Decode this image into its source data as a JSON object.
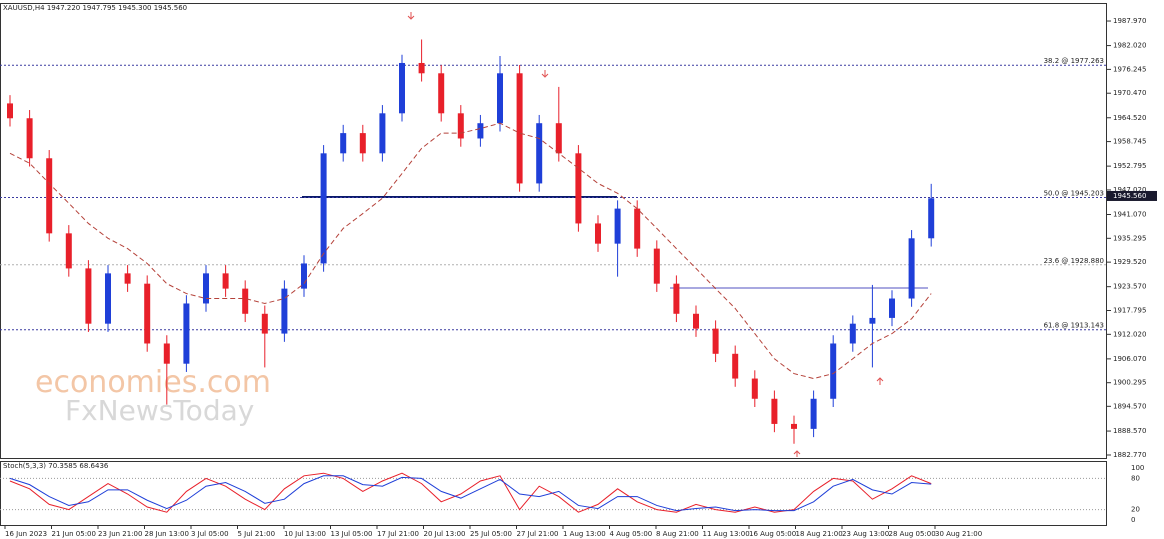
{
  "chart_data": {
    "type": "candlestick",
    "title": "XAUUSD,H4  1947.220 1947.795 1945.300 1945.560",
    "categories": [
      "16 Jun 2023",
      "21 Jun 05:00",
      "23 Jun 21:00",
      "28 Jun 13:00",
      "3 Jul 05:00",
      "5 Jul 21:00",
      "10 Jul 13:00",
      "13 Jul 05:00",
      "17 Jul 21:00",
      "20 Jul 13:00",
      "25 Jul 05:00",
      "27 Jul 21:00",
      "1 Aug 13:00",
      "4 Aug 05:00",
      "8 Aug 21:00",
      "11 Aug 13:00",
      "16 Aug 05:00",
      "18 Aug 21:00",
      "23 Aug 13:00",
      "28 Aug 05:00",
      "30 Aug 21:00"
    ],
    "open": [
      1968.0,
      1964.4,
      1954.7,
      1936.5,
      1928.0,
      1914.6,
      1926.8,
      1924.3,
      1909.8,
      1904.9,
      1919.5,
      1926.8,
      1923.1,
      1917.0,
      1912.2,
      1923.1,
      1929.2,
      1955.9,
      1960.8,
      1955.9,
      1965.6,
      1977.8,
      1975.3,
      1965.6,
      1959.5,
      1963.2,
      1975.3,
      1948.6,
      1963.2,
      1955.9,
      1938.9,
      1934.0,
      1942.5,
      1932.8,
      1924.3,
      1917.0,
      1913.4,
      1907.3,
      1901.3,
      1896.4,
      1890.3,
      1889.1,
      1896.4,
      1909.8,
      1914.6,
      1916.0,
      1920.7,
      1935.3
    ],
    "high": [
      1970.0,
      1966.4,
      1956.7,
      1938.5,
      1930.0,
      1928.8,
      1928.8,
      1926.3,
      1911.8,
      1921.5,
      1928.8,
      1928.8,
      1925.1,
      1919.0,
      1925.1,
      1931.2,
      1957.9,
      1962.8,
      1962.8,
      1967.6,
      1979.8,
      1983.5,
      1977.3,
      1967.6,
      1965.2,
      1979.5,
      1977.3,
      1965.2,
      1972.0,
      1957.9,
      1940.9,
      1944.5,
      1944.5,
      1934.8,
      1926.3,
      1919.0,
      1915.4,
      1909.3,
      1903.3,
      1898.4,
      1892.3,
      1898.4,
      1911.8,
      1916.6,
      1924.0,
      1922.7,
      1937.3,
      1948.5
    ],
    "low": [
      1962.4,
      1952.7,
      1934.5,
      1926.0,
      1912.6,
      1912.6,
      1922.3,
      1907.8,
      1895.0,
      1902.9,
      1917.5,
      1921.1,
      1915.0,
      1904.0,
      1910.2,
      1921.1,
      1927.2,
      1953.9,
      1953.9,
      1953.9,
      1963.6,
      1973.3,
      1963.6,
      1957.5,
      1957.5,
      1961.2,
      1946.6,
      1946.6,
      1953.9,
      1936.9,
      1932.0,
      1926.0,
      1930.8,
      1922.3,
      1915.0,
      1911.4,
      1905.3,
      1899.3,
      1894.4,
      1888.3,
      1885.5,
      1887.1,
      1894.4,
      1907.8,
      1904.0,
      1914.0,
      1918.7,
      1933.3
    ],
    "close": [
      1964.4,
      1954.7,
      1936.5,
      1928.0,
      1914.6,
      1926.8,
      1924.3,
      1909.8,
      1904.9,
      1919.5,
      1926.8,
      1923.1,
      1917.0,
      1912.2,
      1923.1,
      1929.2,
      1955.9,
      1960.8,
      1955.9,
      1965.6,
      1977.8,
      1975.3,
      1965.6,
      1959.5,
      1963.2,
      1975.3,
      1948.6,
      1963.2,
      1955.9,
      1938.9,
      1934.0,
      1942.5,
      1932.8,
      1924.3,
      1917.0,
      1913.4,
      1907.3,
      1901.3,
      1896.4,
      1890.3,
      1889.1,
      1896.4,
      1909.8,
      1914.6,
      1916.0,
      1920.7,
      1935.3,
      1945.0
    ],
    "up_color": "#1f3fd8",
    "down_color": "#e8202a",
    "moving_average": {
      "color": "#b5423a",
      "values": [
        1955.9,
        1953.5,
        1948.6,
        1943.8,
        1938.9,
        1935.3,
        1932.8,
        1929.2,
        1924.3,
        1921.9,
        1920.7,
        1920.7,
        1920.7,
        1919.5,
        1920.7,
        1924.3,
        1931.6,
        1937.7,
        1941.3,
        1945.0,
        1951.0,
        1957.1,
        1960.8,
        1960.8,
        1961.9,
        1963.2,
        1960.8,
        1959.5,
        1955.9,
        1952.3,
        1948.6,
        1946.2,
        1942.5,
        1937.7,
        1932.8,
        1928.0,
        1923.1,
        1918.3,
        1912.2,
        1906.1,
        1902.5,
        1901.3,
        1902.5,
        1906.1,
        1909.8,
        1912.2,
        1915.8,
        1921.9
      ]
    },
    "ylim": [
      1882.04,
      1992.34
    ],
    "yticks": [
      {
        "value": 1987.97,
        "label": "1987.970"
      },
      {
        "value": 1982.02,
        "label": "1982.020"
      },
      {
        "value": 1976.245,
        "label": "1976.245"
      },
      {
        "value": 1970.47,
        "label": "1970.470"
      },
      {
        "value": 1964.52,
        "label": "1964.520"
      },
      {
        "value": 1958.745,
        "label": "1958.745"
      },
      {
        "value": 1952.795,
        "label": "1952.795"
      },
      {
        "value": 1947.02,
        "label": "1947.020"
      },
      {
        "value": 1941.07,
        "label": "1941.070"
      },
      {
        "value": 1935.295,
        "label": "1935.295"
      },
      {
        "value": 1929.52,
        "label": "1929.520"
      },
      {
        "value": 1923.57,
        "label": "1923.570"
      },
      {
        "value": 1917.795,
        "label": "1917.795"
      },
      {
        "value": 1912.02,
        "label": "1912.020"
      },
      {
        "value": 1906.07,
        "label": "1906.070"
      },
      {
        "value": 1900.295,
        "label": "1900.295"
      },
      {
        "value": 1894.57,
        "label": "1894.570"
      },
      {
        "value": 1888.57,
        "label": "1888.570"
      },
      {
        "value": 1882.77,
        "label": "1882.770"
      }
    ],
    "levels": [
      {
        "value": 1977.263,
        "label": "38.2 @ 1977.263",
        "color": "#3a3aa0"
      },
      {
        "value": 1945.203,
        "label": "50.0 @ 1945.203",
        "color": "#3a3aa0"
      },
      {
        "value": 1928.88,
        "label": "23.6 @ 1928.880",
        "color": "#b0b0b0"
      },
      {
        "value": 1913.143,
        "label": "61.8 @ 1913.143",
        "color": "#3a3aa0"
      }
    ],
    "last_price": {
      "value": 1945.56,
      "label": "1945.560"
    },
    "watermark": [
      "economies.com",
      "FxNewsToday"
    ],
    "stochastic": {
      "title": "Stoch(5,3,3) 70.3585 68.6436",
      "ylim": [
        0,
        100
      ],
      "yticks": [
        0,
        20,
        80,
        100
      ],
      "series": [
        {
          "color": "#e8202a",
          "values": [
            75,
            60,
            30,
            20,
            45,
            70,
            50,
            25,
            15,
            55,
            80,
            65,
            40,
            20,
            60,
            85,
            90,
            80,
            55,
            75,
            90,
            70,
            35,
            50,
            75,
            85,
            20,
            65,
            45,
            15,
            30,
            60,
            35,
            20,
            15,
            30,
            20,
            15,
            25,
            15,
            20,
            55,
            80,
            75,
            40,
            60,
            85,
            70
          ]
        },
        {
          "color": "#1f3fd8",
          "values": [
            80,
            68,
            45,
            28,
            35,
            58,
            58,
            38,
            22,
            38,
            65,
            72,
            55,
            32,
            40,
            70,
            85,
            85,
            68,
            65,
            82,
            80,
            55,
            42,
            60,
            78,
            50,
            45,
            55,
            28,
            22,
            45,
            45,
            28,
            18,
            22,
            25,
            18,
            20,
            18,
            18,
            35,
            65,
            78,
            58,
            50,
            72,
            69
          ]
        }
      ]
    }
  }
}
